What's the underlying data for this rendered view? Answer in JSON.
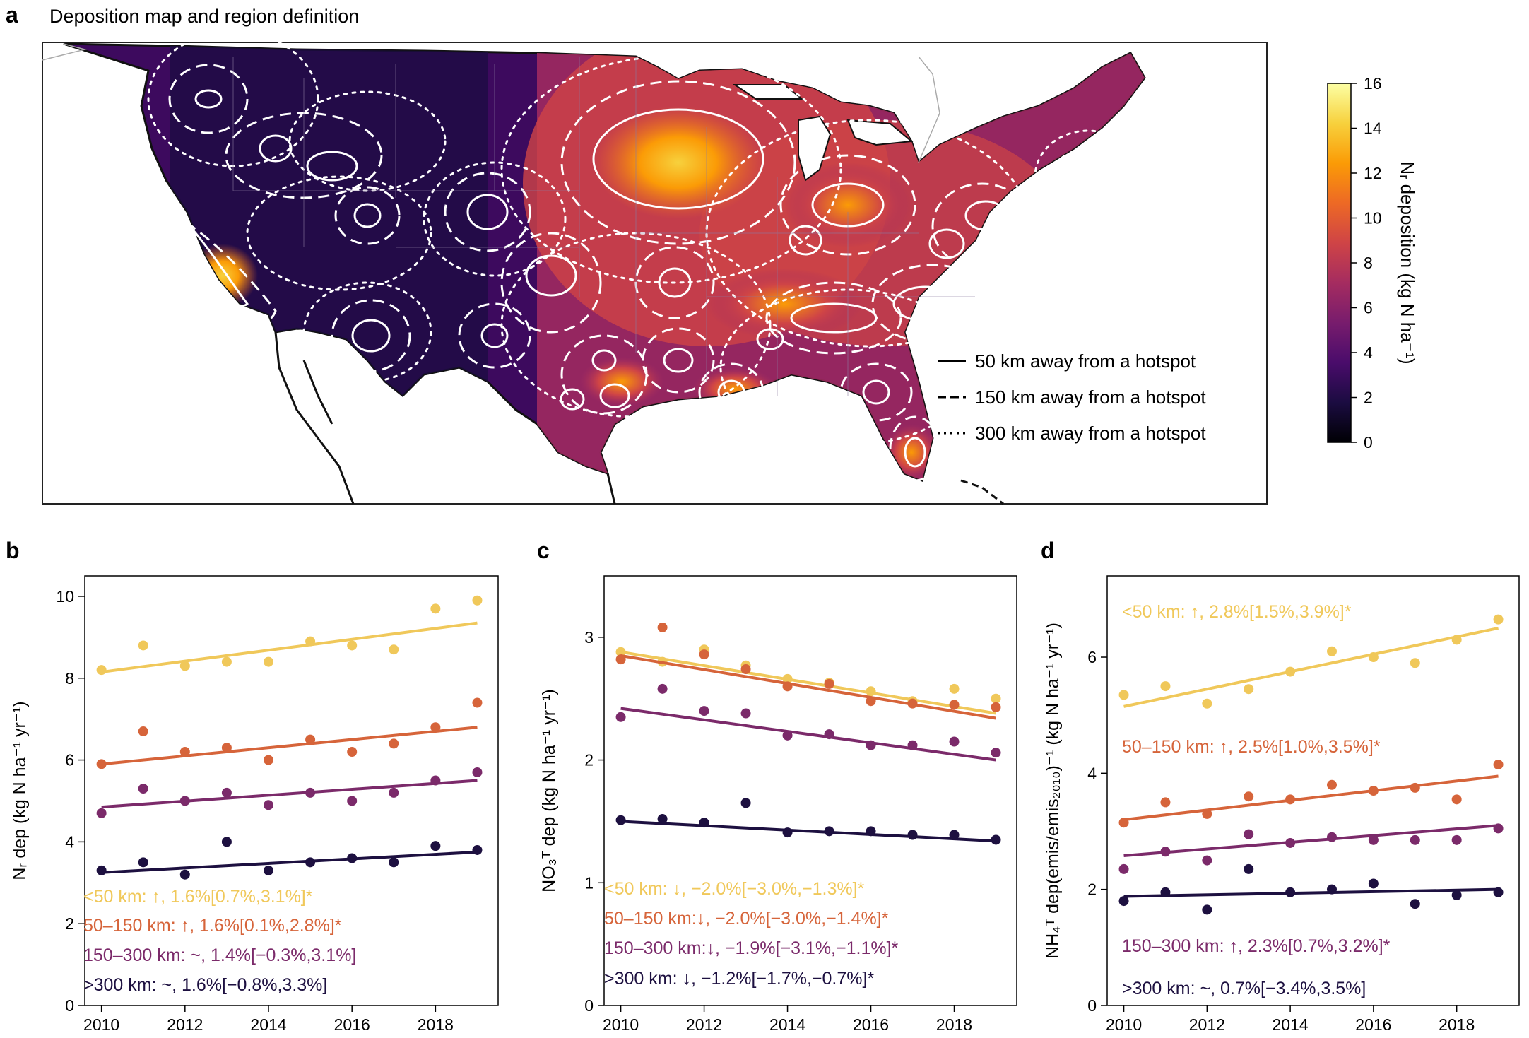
{
  "panel_a": {
    "letter": "a",
    "title": "Deposition map and region definition",
    "legend": [
      {
        "style": "solid",
        "label": "50 km away from a hotspot"
      },
      {
        "style": "dashed",
        "label": "150 km away from a hotspot"
      },
      {
        "style": "dotted",
        "label": "300 km away from a hotspot"
      }
    ],
    "colorbar": {
      "label": "Nᵣ deposition (kg N ha⁻¹)",
      "ticks": [
        0,
        2,
        4,
        6,
        8,
        10,
        12,
        14,
        16
      ],
      "range": [
        0,
        16
      ],
      "colors": [
        "#000004",
        "#1b0c41",
        "#4a0c6b",
        "#781c6d",
        "#a52c60",
        "#cf4446",
        "#ed6925",
        "#fb9b06",
        "#f7d13d",
        "#fcffa4"
      ]
    }
  },
  "chart_data": [
    {
      "letter": "b",
      "type": "scatter",
      "ylabel": "Nᵣ dep (kg N ha⁻¹ yr⁻¹)",
      "xlim": [
        2009.6,
        2019.5
      ],
      "ylim": [
        0,
        10.5
      ],
      "xticks": [
        2010,
        2012,
        2014,
        2016,
        2018
      ],
      "yticks": [
        0,
        2,
        4,
        6,
        8,
        10
      ],
      "x": [
        2010,
        2011,
        2012,
        2013,
        2014,
        2015,
        2016,
        2017,
        2018,
        2019
      ],
      "series": [
        {
          "color": "#f0c85a",
          "values": [
            8.2,
            8.8,
            8.3,
            8.4,
            8.4,
            8.9,
            8.8,
            8.7,
            9.7,
            9.9
          ],
          "fit": [
            8.15,
            9.35
          ],
          "annotation": "<50 km: ↑, 1.6%[0.7%,3.1%]*"
        },
        {
          "color": "#d6643a",
          "values": [
            5.9,
            6.7,
            6.2,
            6.3,
            6.0,
            6.5,
            6.2,
            6.4,
            6.8,
            7.4
          ],
          "fit": [
            5.9,
            6.8
          ],
          "annotation": "50–150 km: ↑, 1.6%[0.1%,2.8%]*"
        },
        {
          "color": "#7b2a6a",
          "values": [
            4.7,
            5.3,
            5.0,
            5.2,
            4.9,
            5.2,
            5.0,
            5.2,
            5.5,
            5.7
          ],
          "fit": [
            4.85,
            5.5
          ],
          "annotation": "150–300 km: ~, 1.4%[−0.3%,3.1%]"
        },
        {
          "color": "#1d1040",
          "values": [
            3.3,
            3.5,
            3.2,
            4.0,
            3.3,
            3.5,
            3.6,
            3.5,
            3.9,
            3.8
          ],
          "fit": [
            3.25,
            3.75
          ],
          "annotation": ">300 km: ~, 1.6%[−0.8%,3.3%]"
        }
      ]
    },
    {
      "letter": "c",
      "type": "scatter",
      "ylabel": "NO₃ᵀ dep (kg N ha⁻¹ yr⁻¹)",
      "xlim": [
        2009.6,
        2019.5
      ],
      "ylim": [
        0,
        3.5
      ],
      "xticks": [
        2010,
        2012,
        2014,
        2016,
        2018
      ],
      "yticks": [
        0,
        1,
        2,
        3
      ],
      "x": [
        2010,
        2011,
        2012,
        2013,
        2014,
        2015,
        2016,
        2017,
        2018,
        2019
      ],
      "series": [
        {
          "color": "#f0c85a",
          "values": [
            2.88,
            2.8,
            2.9,
            2.77,
            2.66,
            2.63,
            2.56,
            2.48,
            2.58,
            2.5
          ],
          "fit": [
            2.88,
            2.38
          ],
          "annotation": "<50 km: ↓, −2.0%[−3.0%,−1.3%]*"
        },
        {
          "color": "#d6643a",
          "values": [
            2.82,
            3.08,
            2.86,
            2.74,
            2.6,
            2.62,
            2.48,
            2.46,
            2.45,
            2.43
          ],
          "fit": [
            2.85,
            2.34
          ],
          "annotation": "50–150 km:↓, −2.0%[−3.0%,−1.4%]*"
        },
        {
          "color": "#7b2a6a",
          "values": [
            2.35,
            2.58,
            2.4,
            2.38,
            2.2,
            2.21,
            2.12,
            2.12,
            2.15,
            2.06
          ],
          "fit": [
            2.42,
            2.0
          ],
          "annotation": "150–300 km:↓, −1.9%[−3.1%,−1.1%]*"
        },
        {
          "color": "#1d1040",
          "values": [
            1.51,
            1.52,
            1.49,
            1.65,
            1.41,
            1.42,
            1.42,
            1.39,
            1.39,
            1.35
          ],
          "fit": [
            1.5,
            1.34
          ],
          "annotation": ">300 km: ↓, −1.2%[−1.7%,−0.7%]*"
        }
      ]
    },
    {
      "letter": "d",
      "type": "scatter",
      "ylabel": "NH₄ᵀ dep(emis/emis₂₀₁₀)⁻¹ (kg N ha⁻¹ yr⁻¹)",
      "xlim": [
        2009.6,
        2019.5
      ],
      "ylim": [
        0,
        7.4
      ],
      "xticks": [
        2010,
        2012,
        2014,
        2016,
        2018
      ],
      "yticks": [
        0,
        2,
        4,
        6
      ],
      "x": [
        2010,
        2011,
        2012,
        2013,
        2014,
        2015,
        2016,
        2017,
        2018,
        2019
      ],
      "series": [
        {
          "color": "#f0c85a",
          "values": [
            5.35,
            5.5,
            5.2,
            5.45,
            5.75,
            6.1,
            6.0,
            5.9,
            6.3,
            6.65
          ],
          "fit": [
            5.15,
            6.5
          ],
          "annotation": "<50 km: ↑, 2.8%[1.5%,3.9%]*"
        },
        {
          "color": "#d6643a",
          "values": [
            3.15,
            3.5,
            3.3,
            3.6,
            3.55,
            3.8,
            3.7,
            3.75,
            3.55,
            4.15
          ],
          "fit": [
            3.2,
            3.95
          ],
          "annotation": "50–150 km: ↑, 2.5%[1.0%,3.5%]*"
        },
        {
          "color": "#7b2a6a",
          "values": [
            2.35,
            2.65,
            2.5,
            2.95,
            2.8,
            2.9,
            2.85,
            2.85,
            2.85,
            3.05
          ],
          "fit": [
            2.58,
            3.1
          ],
          "annotation": "150–300 km: ↑, 2.3%[0.7%,3.2%]*"
        },
        {
          "color": "#1d1040",
          "values": [
            1.8,
            1.95,
            1.65,
            2.35,
            1.95,
            2.0,
            2.1,
            1.75,
            1.9,
            1.95
          ],
          "fit": [
            1.88,
            2.0
          ],
          "annotation": ">300 km: ~, 0.7%[−3.4%,3.5%]"
        }
      ]
    }
  ]
}
